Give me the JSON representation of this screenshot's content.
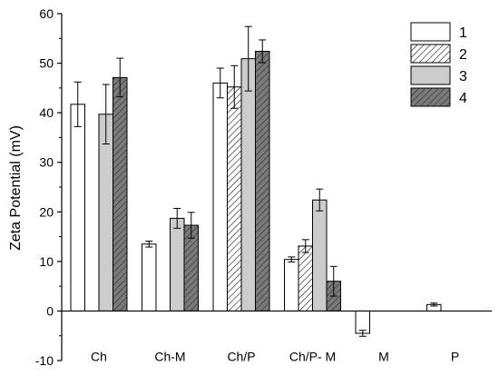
{
  "chart_data": {
    "type": "bar",
    "title": "",
    "xlabel": "",
    "ylabel": "Zeta Potential (mV)",
    "ylim": [
      -10,
      60
    ],
    "yticks": [
      -10,
      0,
      10,
      20,
      30,
      40,
      50,
      60
    ],
    "grid": false,
    "legend_position": "top-right",
    "categories": [
      "Ch",
      "Ch-M",
      "Ch/P",
      "Ch/P- M",
      "M",
      "P"
    ],
    "series": [
      {
        "name": "1",
        "fill": "white",
        "values": [
          41.7,
          13.5,
          46.0,
          10.4,
          -4.5,
          1.3
        ],
        "errors": [
          4.5,
          0.6,
          3.0,
          0.5,
          0.6,
          0.3
        ]
      },
      {
        "name": "2",
        "fill": "hatch-light",
        "values": [
          null,
          null,
          45.2,
          13.1,
          null,
          null
        ],
        "errors": [
          null,
          null,
          4.3,
          1.3,
          null,
          null
        ]
      },
      {
        "name": "3",
        "fill": "light-gray",
        "values": [
          39.7,
          18.7,
          50.9,
          22.4,
          null,
          null
        ],
        "errors": [
          6.0,
          2.0,
          6.5,
          2.2,
          null,
          null
        ]
      },
      {
        "name": "4",
        "fill": "hatch-dark",
        "values": [
          47.1,
          17.3,
          52.4,
          6.0,
          null,
          null
        ],
        "errors": [
          3.9,
          2.6,
          2.3,
          3.0,
          null,
          null
        ]
      }
    ],
    "colors": {
      "light_gray": "#cccccc",
      "dark_gray": "#7a7a7a",
      "outline": "#000000"
    }
  }
}
